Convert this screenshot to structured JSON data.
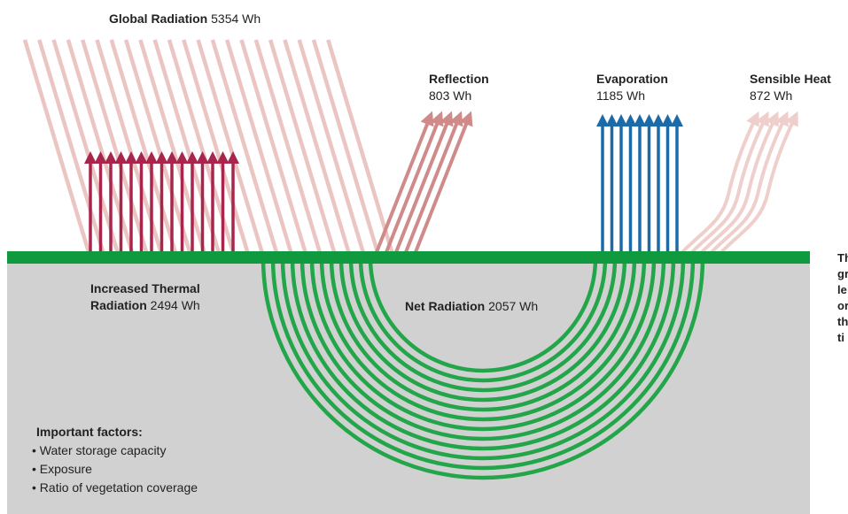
{
  "diagram": {
    "global_radiation": {
      "label": "Global Radiation",
      "value": "5354 Wh"
    },
    "reflection": {
      "label": "Reflection",
      "value": "803 Wh"
    },
    "evaporation": {
      "label": "Evaporation",
      "value": "1185 Wh"
    },
    "sensible_heat": {
      "label": "Sensible Heat",
      "value": "872 Wh"
    },
    "thermal_radiation": {
      "label_line1": "Increased Thermal",
      "label_line2": "Radiation",
      "value": "2494 Wh"
    },
    "net_radiation": {
      "label": "Net Radiation",
      "value": "2057 Wh"
    },
    "factors": {
      "title": "Important factors:",
      "items": [
        "• Water storage capacity",
        "• Exposure",
        "• Ratio of vegetation coverage"
      ]
    },
    "side_note_lines": [
      "Th",
      "gr",
      "le",
      "or",
      "th",
      "ti"
    ],
    "colors": {
      "incoming": "#ebc5c2",
      "thermal": "#a8264d",
      "reflection": "#cf8a8a",
      "evaporation": "#1c6aa8",
      "sensible": "#efcfcb",
      "ground_line": "#0f9a3f",
      "net_arcs": "#23a64a",
      "soil": "#d1d1d1"
    }
  }
}
